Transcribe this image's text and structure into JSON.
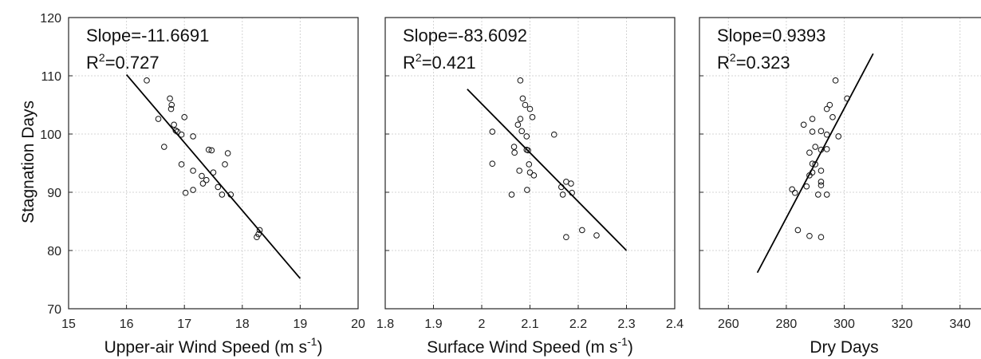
{
  "chart_data": [
    {
      "type": "scatter",
      "xlabel": "Upper-air Wind Speed (m s",
      "xlabel_sup": "-1",
      "xlabel_tail": ")",
      "ylabel": "Stagnation Days",
      "xlim": [
        15,
        20
      ],
      "ylim": [
        70,
        120
      ],
      "xticks": [
        "15",
        "16",
        "17",
        "18",
        "19",
        "20"
      ],
      "yticks": [
        "70",
        "80",
        "90",
        "100",
        "110",
        "120"
      ],
      "grid": true,
      "annotation": {
        "slope": "Slope=-11.6691",
        "r2_prefix": "R",
        "r2_sup": "2",
        "r2_value": "=0.727"
      },
      "fit_line": {
        "x": [
          16.0,
          19.0
        ],
        "y": [
          110.2,
          75.2
        ]
      },
      "points": [
        {
          "x": 16.35,
          "y": 109.2
        },
        {
          "x": 16.75,
          "y": 106.1
        },
        {
          "x": 16.78,
          "y": 105.0
        },
        {
          "x": 16.77,
          "y": 104.3
        },
        {
          "x": 16.55,
          "y": 102.6
        },
        {
          "x": 17.0,
          "y": 102.9
        },
        {
          "x": 16.82,
          "y": 101.6
        },
        {
          "x": 16.85,
          "y": 100.6
        },
        {
          "x": 16.88,
          "y": 100.4
        },
        {
          "x": 16.95,
          "y": 99.9
        },
        {
          "x": 17.15,
          "y": 99.6
        },
        {
          "x": 16.65,
          "y": 97.8
        },
        {
          "x": 17.42,
          "y": 97.3
        },
        {
          "x": 17.47,
          "y": 97.2
        },
        {
          "x": 17.75,
          "y": 96.7
        },
        {
          "x": 16.95,
          "y": 94.8
        },
        {
          "x": 17.7,
          "y": 94.8
        },
        {
          "x": 17.15,
          "y": 93.7
        },
        {
          "x": 17.5,
          "y": 93.4
        },
        {
          "x": 17.3,
          "y": 92.8
        },
        {
          "x": 17.38,
          "y": 92.1
        },
        {
          "x": 17.32,
          "y": 91.5
        },
        {
          "x": 17.58,
          "y": 90.9
        },
        {
          "x": 17.15,
          "y": 90.4
        },
        {
          "x": 17.02,
          "y": 89.9
        },
        {
          "x": 17.65,
          "y": 89.6
        },
        {
          "x": 17.8,
          "y": 89.6
        },
        {
          "x": 18.3,
          "y": 83.5
        },
        {
          "x": 18.28,
          "y": 82.8
        },
        {
          "x": 18.25,
          "y": 82.3
        }
      ]
    },
    {
      "type": "scatter",
      "xlabel": "Surface Wind Speed (m s",
      "xlabel_sup": "-1",
      "xlabel_tail": ")",
      "ylabel": "",
      "xlim": [
        1.8,
        2.4
      ],
      "ylim": [
        70,
        120
      ],
      "xticks": [
        "1.8",
        "1.9",
        "2",
        "2.1",
        "2.2",
        "2.3",
        "2.4"
      ],
      "yticks": [],
      "grid": true,
      "annotation": {
        "slope": "Slope=-83.6092",
        "r2_prefix": "R",
        "r2_sup": "2",
        "r2_value": "=0.421"
      },
      "fit_line": {
        "x": [
          1.97,
          2.3
        ],
        "y": [
          107.7,
          80.0
        ]
      },
      "points": [
        {
          "x": 2.08,
          "y": 109.2
        },
        {
          "x": 2.085,
          "y": 106.1
        },
        {
          "x": 2.09,
          "y": 105.0
        },
        {
          "x": 2.1,
          "y": 104.3
        },
        {
          "x": 2.08,
          "y": 102.6
        },
        {
          "x": 2.105,
          "y": 102.9
        },
        {
          "x": 2.075,
          "y": 101.6
        },
        {
          "x": 2.022,
          "y": 100.4
        },
        {
          "x": 2.083,
          "y": 100.5
        },
        {
          "x": 2.15,
          "y": 99.9
        },
        {
          "x": 2.093,
          "y": 99.6
        },
        {
          "x": 2.067,
          "y": 97.8
        },
        {
          "x": 2.093,
          "y": 97.3
        },
        {
          "x": 2.096,
          "y": 97.2
        },
        {
          "x": 2.068,
          "y": 96.8
        },
        {
          "x": 2.022,
          "y": 94.9
        },
        {
          "x": 2.098,
          "y": 94.8
        },
        {
          "x": 2.078,
          "y": 93.7
        },
        {
          "x": 2.1,
          "y": 93.4
        },
        {
          "x": 2.108,
          "y": 92.9
        },
        {
          "x": 2.175,
          "y": 91.8
        },
        {
          "x": 2.185,
          "y": 91.5
        },
        {
          "x": 2.165,
          "y": 90.9
        },
        {
          "x": 2.094,
          "y": 90.4
        },
        {
          "x": 2.187,
          "y": 89.9
        },
        {
          "x": 2.062,
          "y": 89.6
        },
        {
          "x": 2.168,
          "y": 89.6
        },
        {
          "x": 2.208,
          "y": 83.5
        },
        {
          "x": 2.238,
          "y": 82.6
        },
        {
          "x": 2.175,
          "y": 82.3
        }
      ]
    },
    {
      "type": "scatter",
      "xlabel": "Dry Days",
      "xlabel_sup": "",
      "xlabel_tail": "",
      "ylabel": "",
      "xlim": [
        250,
        350
      ],
      "ylim": [
        70,
        120
      ],
      "xticks": [
        "260",
        "280",
        "300",
        "320",
        "340"
      ],
      "xtick_values": [
        260,
        280,
        300,
        320,
        340
      ],
      "yticks": [],
      "grid": true,
      "annotation": {
        "slope": "Slope=0.9393",
        "r2_prefix": "R",
        "r2_sup": "2",
        "r2_value": "=0.323"
      },
      "fit_line": {
        "x": [
          270,
          310
        ],
        "y": [
          76.2,
          113.8
        ]
      },
      "points": [
        {
          "x": 297,
          "y": 109.2
        },
        {
          "x": 301,
          "y": 106.1
        },
        {
          "x": 295,
          "y": 105.0
        },
        {
          "x": 294,
          "y": 104.3
        },
        {
          "x": 289,
          "y": 102.6
        },
        {
          "x": 296,
          "y": 102.9
        },
        {
          "x": 286,
          "y": 101.6
        },
        {
          "x": 289,
          "y": 100.4
        },
        {
          "x": 292,
          "y": 100.5
        },
        {
          "x": 294,
          "y": 99.9
        },
        {
          "x": 298,
          "y": 99.6
        },
        {
          "x": 290,
          "y": 97.8
        },
        {
          "x": 292,
          "y": 97.3
        },
        {
          "x": 294,
          "y": 97.4
        },
        {
          "x": 288,
          "y": 96.8
        },
        {
          "x": 289,
          "y": 94.9
        },
        {
          "x": 290,
          "y": 94.8
        },
        {
          "x": 292,
          "y": 93.7
        },
        {
          "x": 289,
          "y": 93.4
        },
        {
          "x": 288,
          "y": 92.9
        },
        {
          "x": 292,
          "y": 91.8
        },
        {
          "x": 292,
          "y": 91.2
        },
        {
          "x": 287,
          "y": 91.0
        },
        {
          "x": 282,
          "y": 90.5
        },
        {
          "x": 283,
          "y": 89.9
        },
        {
          "x": 291,
          "y": 89.6
        },
        {
          "x": 294,
          "y": 89.6
        },
        {
          "x": 284,
          "y": 83.5
        },
        {
          "x": 288,
          "y": 82.5
        },
        {
          "x": 292,
          "y": 82.3
        }
      ]
    }
  ]
}
